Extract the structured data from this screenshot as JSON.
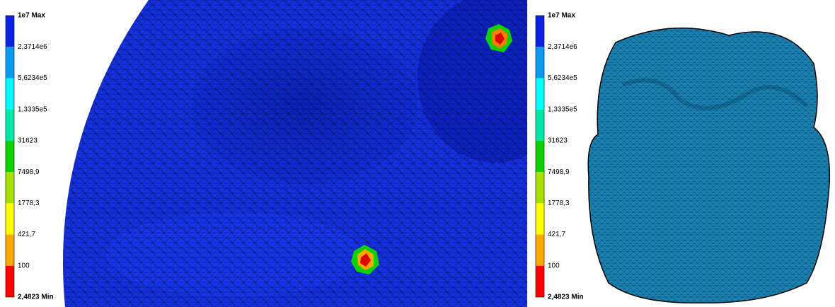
{
  "colors": [
    "#0a22e0",
    "#0a9af0",
    "#00ffff",
    "#00e8a8",
    "#10d000",
    "#a8e000",
    "#ffff00",
    "#ffa800",
    "#ff0000"
  ],
  "legends": [
    {
      "labels": [
        "1e7 Max",
        "2,3714e6",
        "5,6234e5",
        "1,3335e5",
        "31623",
        "7498,9",
        "1778,3",
        "421,7",
        "100",
        "2,4823 Min"
      ]
    },
    {
      "labels": [
        "1e7 Max",
        "2,3714e6",
        "5,6234e5",
        "1,3335e5",
        "31623",
        "7498,9",
        "1778,3",
        "421,7",
        "100",
        "2,4823 Min"
      ]
    }
  ]
}
